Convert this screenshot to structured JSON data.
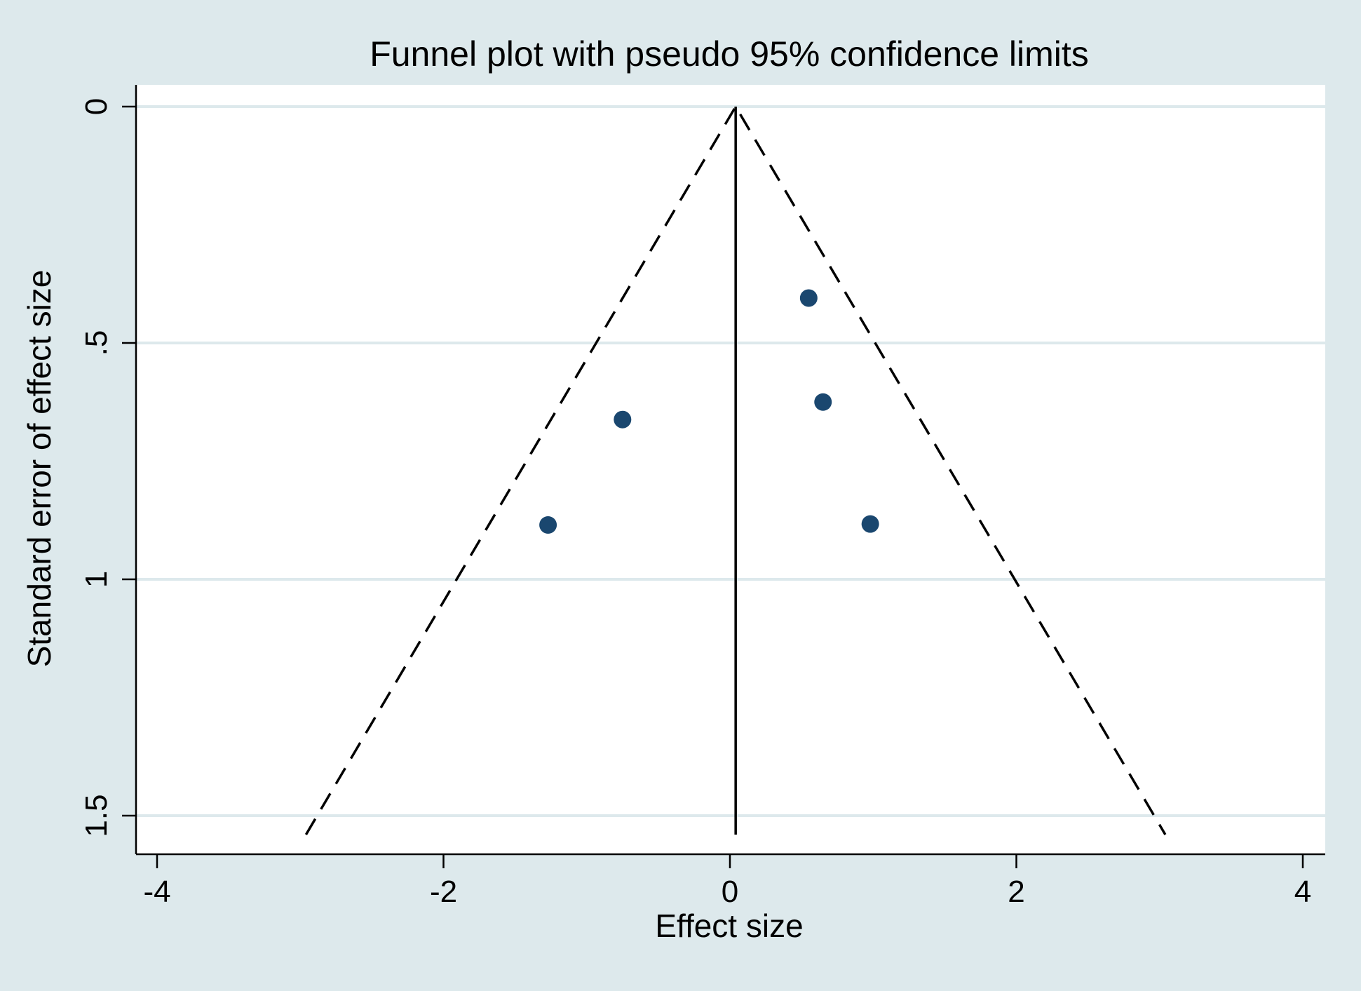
{
  "chart_data": {
    "type": "scatter",
    "title": "Funnel plot with pseudo 95% confidence limits",
    "xlabel": "Effect size",
    "ylabel": "Standard error of effect size",
    "xlim": [
      -4,
      4
    ],
    "ylim": [
      0,
      1.5
    ],
    "y_reversed": true,
    "x_ticks": [
      "-4",
      "-2",
      "0",
      "2",
      "4"
    ],
    "y_ticks": [
      "0",
      ".5",
      "1",
      "1.5"
    ],
    "grid": "horizontal",
    "pooled_effect": 0.04,
    "ci_limit": [
      {
        "x": -2.96,
        "y": 1.54
      },
      {
        "x": 0.04,
        "y": 0
      },
      {
        "x": 3.04,
        "y": 1.54
      }
    ],
    "points": [
      {
        "x": 0.55,
        "y": 0.405
      },
      {
        "x": 0.65,
        "y": 0.625
      },
      {
        "x": -0.75,
        "y": 0.662
      },
      {
        "x": -1.27,
        "y": 0.885
      },
      {
        "x": 0.98,
        "y": 0.883
      }
    ],
    "colors": {
      "background": "#dde9ec",
      "plot_area": "#ffffff",
      "grid": "#dde9ec",
      "marker": "#1a476f",
      "line": "#000000"
    }
  }
}
